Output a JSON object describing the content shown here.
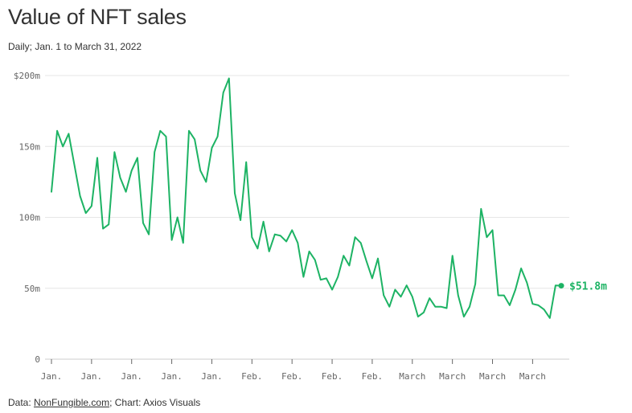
{
  "header": {
    "title": "Value of NFT sales",
    "subtitle": "Daily; Jan. 1 to March 31, 2022"
  },
  "footer": {
    "prefix": "Data: ",
    "source_link": "NonFungible.com",
    "suffix": "; Chart: Axios Visuals"
  },
  "colors": {
    "line": "#1db364",
    "grid": "#e6e6e6",
    "axis": "#666666"
  },
  "chart_data": {
    "type": "line",
    "title": "Value of NFT sales",
    "subtitle": "Daily; Jan. 1 to March 31, 2022",
    "xlabel": "",
    "ylabel": "",
    "ylim": [
      0,
      200
    ],
    "y_unit": "millions of US dollars",
    "y_ticks": [
      0,
      50,
      100,
      150,
      200
    ],
    "y_tick_labels": [
      "0",
      "50m",
      "100m",
      "150m",
      "$200m"
    ],
    "x_tick_labels": [
      "Jan.",
      "Jan.",
      "Jan.",
      "Jan.",
      "Jan.",
      "Feb.",
      "Feb.",
      "Feb.",
      "Feb.",
      "March",
      "March",
      "March",
      "March"
    ],
    "x_tick_dates": [
      "2022-01-01",
      "2022-01-08",
      "2022-01-15",
      "2022-01-22",
      "2022-01-29",
      "2022-02-05",
      "2022-02-12",
      "2022-02-19",
      "2022-02-26",
      "2022-03-05",
      "2022-03-12",
      "2022-03-19",
      "2022-03-26"
    ],
    "grid": true,
    "series": [
      {
        "x_start": "2022-01-01",
        "x_end": "2022-03-31",
        "values": [
          118,
          161,
          150,
          159,
          137,
          115,
          103,
          108,
          142,
          92,
          95,
          146,
          128,
          118,
          133,
          142,
          96,
          88,
          146,
          161,
          157,
          84,
          100,
          82,
          161,
          155,
          133,
          125,
          149,
          157,
          188,
          198,
          117,
          98,
          139,
          86,
          78,
          97,
          76,
          88,
          87,
          83,
          91,
          82,
          58,
          76,
          70,
          56,
          57,
          49,
          58,
          73,
          66,
          86,
          82,
          69,
          57,
          71,
          45,
          37,
          49,
          44,
          52,
          44,
          30,
          33,
          43,
          37,
          37,
          36,
          73,
          45,
          30,
          37,
          53,
          106,
          86,
          91,
          45,
          45,
          38,
          49,
          64,
          54,
          39,
          38,
          35,
          29,
          52,
          51.8
        ]
      }
    ],
    "end_label": "$51.8m"
  }
}
